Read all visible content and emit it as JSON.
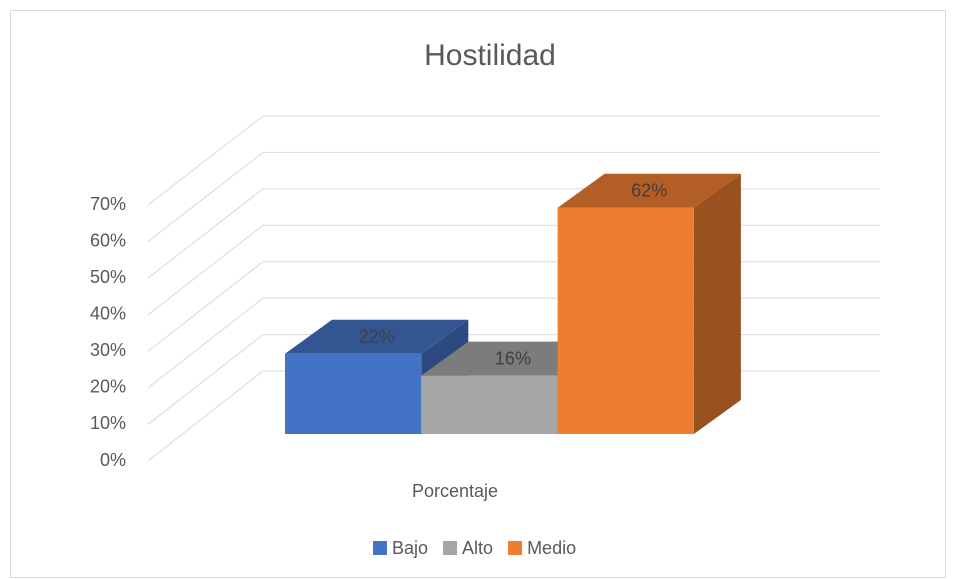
{
  "chart_data": {
    "type": "bar3d",
    "title": "Hostilidad",
    "categories": [
      "Porcentaje"
    ],
    "series": [
      {
        "name": "Bajo",
        "color": "#4472c4",
        "values": [
          22
        ],
        "value_labels": [
          "22%"
        ]
      },
      {
        "name": "Alto",
        "color": "#a5a5a5",
        "values": [
          16
        ],
        "value_labels": [
          "16%"
        ]
      },
      {
        "name": "Medio",
        "color": "#ed7d31",
        "values": [
          62
        ],
        "value_labels": [
          "62%"
        ]
      }
    ],
    "ylim": [
      0,
      70
    ],
    "yticks": [
      {
        "value": 0,
        "label": "0%"
      },
      {
        "value": 10,
        "label": "10%"
      },
      {
        "value": 20,
        "label": "20%"
      },
      {
        "value": 30,
        "label": "30%"
      },
      {
        "value": 40,
        "label": "40%"
      },
      {
        "value": 50,
        "label": "50%"
      },
      {
        "value": 60,
        "label": "60%"
      },
      {
        "value": 70,
        "label": "70%"
      }
    ],
    "grid": true,
    "legend": "bottom"
  }
}
